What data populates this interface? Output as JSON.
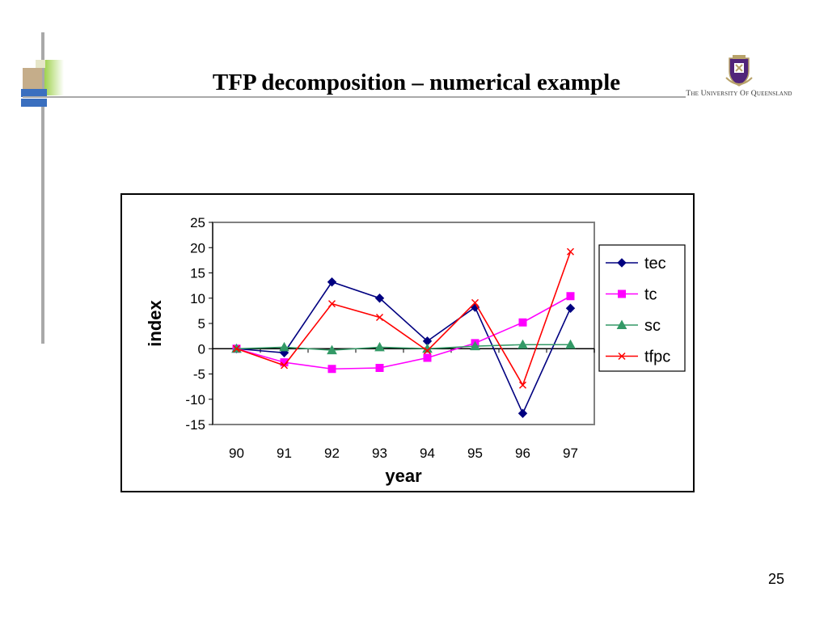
{
  "slide": {
    "title": "TFP decomposition – numerical example",
    "logo_text": "The University Of Queensland",
    "page_number": "25"
  },
  "chart_data": {
    "type": "line",
    "categories": [
      "90",
      "91",
      "92",
      "93",
      "94",
      "95",
      "96",
      "97"
    ],
    "xlabel": "year",
    "ylabel": "index",
    "ylim": [
      -15,
      25
    ],
    "yticks": [
      25,
      20,
      15,
      10,
      5,
      0,
      -5,
      -10,
      -15
    ],
    "legend_position": "right",
    "grid": false,
    "series": [
      {
        "name": "tec",
        "color": "#000080",
        "marker": "diamond",
        "values": [
          0,
          -0.8,
          13.2,
          10.0,
          1.5,
          8.2,
          -12.8,
          8.0
        ]
      },
      {
        "name": "tc",
        "color": "#ff00ff",
        "marker": "square",
        "values": [
          0,
          -2.7,
          -4.0,
          -3.8,
          -1.8,
          1.1,
          5.2,
          10.4
        ]
      },
      {
        "name": "sc",
        "color": "#339966",
        "marker": "triangle",
        "values": [
          0,
          0.3,
          -0.3,
          0.3,
          0.0,
          0.5,
          0.8,
          0.8
        ]
      },
      {
        "name": "tfpc",
        "color": "#ff0000",
        "marker": "x",
        "values": [
          0,
          -3.3,
          8.9,
          6.2,
          -0.4,
          9.1,
          -7.2,
          19.2
        ]
      }
    ]
  }
}
